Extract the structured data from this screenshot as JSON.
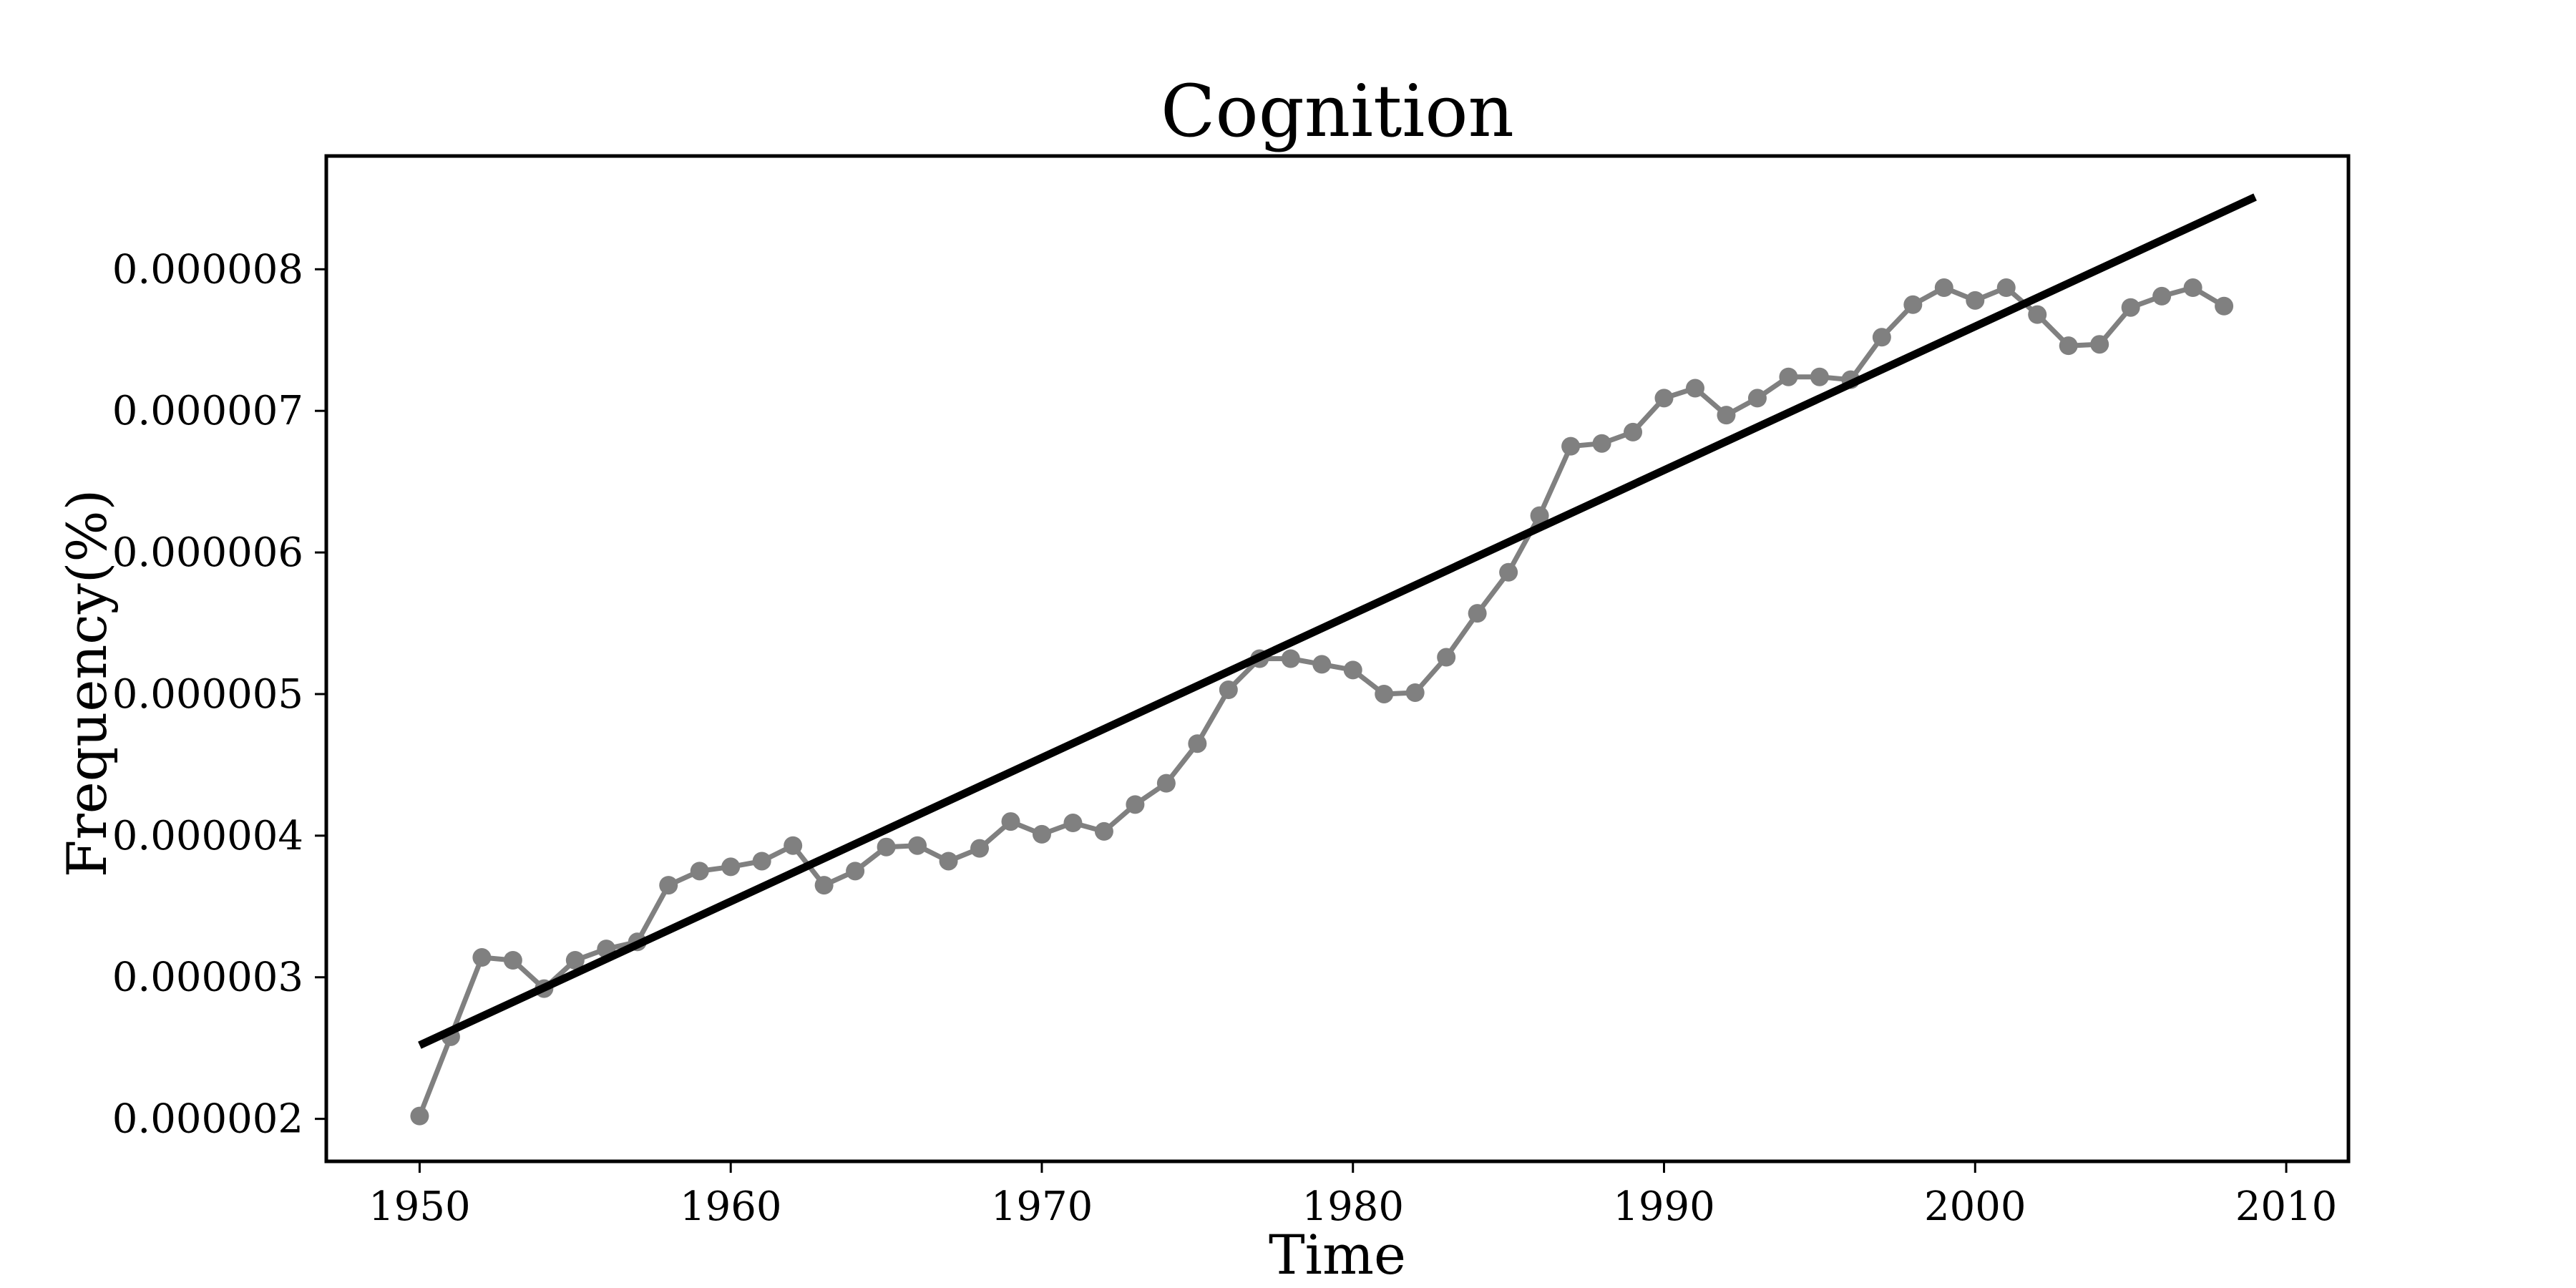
{
  "chart_data": {
    "type": "line",
    "title": "Cognition",
    "xlabel": "Time",
    "ylabel": "Frequency(%)",
    "xlim": [
      1947,
      2012
    ],
    "ylim": [
      1.7e-06,
      8.8e-06
    ],
    "xticks": [
      1950,
      1960,
      1970,
      1980,
      1990,
      2000,
      2010
    ],
    "xtick_labels": [
      "1950",
      "1960",
      "1970",
      "1980",
      "1990",
      "2000",
      "2010"
    ],
    "yticks": [
      2e-06,
      3e-06,
      4e-06,
      5e-06,
      6e-06,
      7e-06,
      8e-06
    ],
    "ytick_labels": [
      "0.000002",
      "0.000003",
      "0.000004",
      "0.000005",
      "0.000006",
      "0.000007",
      "0.000008"
    ],
    "grid": false,
    "series": [
      {
        "style": "line-with-markers",
        "color": "#808080",
        "x": [
          1950,
          1951,
          1952,
          1953,
          1954,
          1955,
          1956,
          1957,
          1958,
          1959,
          1960,
          1961,
          1962,
          1963,
          1964,
          1965,
          1966,
          1967,
          1968,
          1969,
          1970,
          1971,
          1972,
          1973,
          1974,
          1975,
          1976,
          1977,
          1978,
          1979,
          1980,
          1981,
          1982,
          1983,
          1984,
          1985,
          1986,
          1987,
          1988,
          1989,
          1990,
          1991,
          1992,
          1993,
          1994,
          1995,
          1996,
          1997,
          1998,
          1999,
          2000,
          2001,
          2002,
          2003,
          2004,
          2005,
          2006,
          2007,
          2008
        ],
        "y": [
          2.02e-06,
          2.58e-06,
          3.14e-06,
          3.12e-06,
          2.92e-06,
          3.12e-06,
          3.2e-06,
          3.25e-06,
          3.65e-06,
          3.75e-06,
          3.78e-06,
          3.82e-06,
          3.93e-06,
          3.65e-06,
          3.75e-06,
          3.92e-06,
          3.93e-06,
          3.82e-06,
          3.91e-06,
          4.1e-06,
          4.01e-06,
          4.09e-06,
          4.03e-06,
          4.22e-06,
          4.37e-06,
          4.65e-06,
          5.03e-06,
          5.25e-06,
          5.25e-06,
          5.21e-06,
          5.17e-06,
          5e-06,
          5.01e-06,
          5.26e-06,
          5.57e-06,
          5.86e-06,
          6.26e-06,
          6.75e-06,
          6.77e-06,
          6.85e-06,
          7.09e-06,
          7.16e-06,
          6.97e-06,
          7.09e-06,
          7.24e-06,
          7.24e-06,
          7.22e-06,
          7.52e-06,
          7.75e-06,
          7.87e-06,
          7.78e-06,
          7.87e-06,
          7.68e-06,
          7.46e-06,
          7.47e-06,
          7.73e-06,
          7.81e-06,
          7.87e-06,
          7.74e-06
        ]
      },
      {
        "style": "line",
        "color": "#000000",
        "x": [
          1950,
          2009
        ],
        "y": [
          2.52e-06,
          8.51e-06
        ]
      }
    ]
  }
}
